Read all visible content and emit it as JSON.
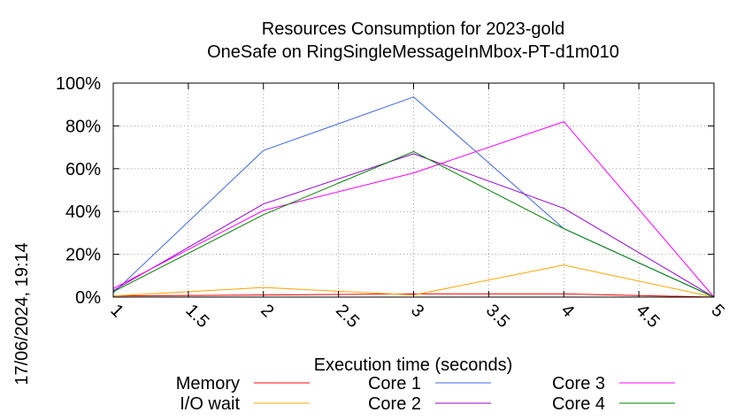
{
  "chart_data": {
    "type": "line",
    "title_line1": "Resources Consumption for 2023-gold",
    "title_line2": "OneSafe on RingSingleMessageInMbox-PT-d1m010",
    "xlabel": "Execution time (seconds)",
    "ylabel": "",
    "timestamp": "17/06/2024, 19:14",
    "xlim": [
      1,
      5
    ],
    "ylim": [
      0,
      100
    ],
    "x_ticks": [
      1,
      1.5,
      2,
      2.5,
      3,
      3.5,
      4,
      4.5,
      5
    ],
    "x_tick_labels": [
      "1",
      "1.5",
      "2",
      "2.5",
      "3",
      "3.5",
      "4",
      "4.5",
      "5"
    ],
    "y_ticks": [
      0,
      20,
      40,
      60,
      80,
      100
    ],
    "y_tick_labels": [
      "0%",
      "20%",
      "40%",
      "60%",
      "80%",
      "100%"
    ],
    "grid": true,
    "legend_placement": "bottom",
    "series": [
      {
        "name": "Memory",
        "color": "#ff0000",
        "x": [
          1,
          2,
          3,
          4,
          5
        ],
        "y": [
          0.5,
          1,
          1.5,
          1.5,
          0
        ]
      },
      {
        "name": "I/O wait",
        "color": "#ffa500",
        "x": [
          1,
          2,
          3,
          4,
          5
        ],
        "y": [
          0.5,
          4.5,
          1,
          15,
          0
        ]
      },
      {
        "name": "Core 1",
        "color": "#4169e1",
        "x": [
          1,
          2,
          3,
          4,
          5
        ],
        "y": [
          2,
          68.5,
          93.5,
          32,
          0
        ]
      },
      {
        "name": "Core 2",
        "color": "#9400d3",
        "x": [
          1,
          2,
          3,
          4,
          5
        ],
        "y": [
          3,
          43.5,
          67,
          41.5,
          0
        ]
      },
      {
        "name": "Core 3",
        "color": "#ff00ff",
        "x": [
          1,
          2,
          3,
          4,
          5
        ],
        "y": [
          4,
          40.5,
          58,
          82,
          0
        ]
      },
      {
        "name": "Core 4",
        "color": "#008000",
        "x": [
          1,
          2,
          3,
          4,
          5
        ],
        "y": [
          2.5,
          38.5,
          68,
          32,
          0
        ]
      }
    ]
  }
}
